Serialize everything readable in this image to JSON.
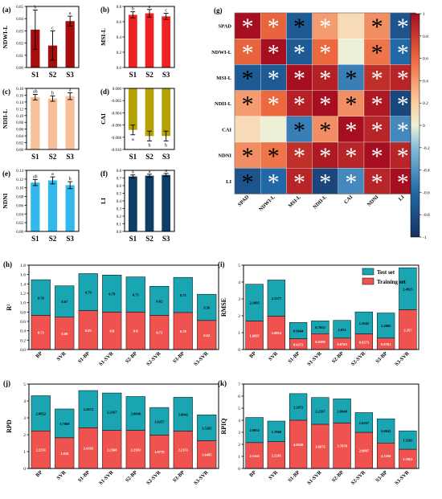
{
  "chart_data": [
    {
      "id": "a",
      "type": "bar",
      "panel_label": "(a)",
      "categories": [
        "S1",
        "S2",
        "S3"
      ],
      "values": [
        0.031,
        0.018,
        0.038
      ],
      "errors": [
        0.016,
        0.012,
        0.004
      ],
      "letters": [
        "b",
        "c",
        "a"
      ],
      "ylabel": "NDWI-L",
      "ylim": [
        0,
        0.05
      ],
      "yticks": [
        0,
        0.01,
        0.02,
        0.03,
        0.04,
        0.05
      ],
      "yticklabels": [
        "0.00",
        "0.01",
        "0.02",
        "0.03",
        "0.04",
        "0.05"
      ],
      "color": "#a80d0d"
    },
    {
      "id": "b",
      "type": "bar",
      "panel_label": "(b)",
      "categories": [
        "S1",
        "S2",
        "S3"
      ],
      "values": [
        0.69,
        0.71,
        0.67
      ],
      "errors": [
        0.04,
        0.05,
        0.04
      ],
      "letters": [
        "b",
        "a",
        "c"
      ],
      "ylabel": "MSI-L",
      "ylim": [
        0,
        0.8
      ],
      "yticks": [
        0,
        0.2,
        0.4,
        0.6,
        0.8
      ],
      "yticklabels": [
        "0.0",
        "0.2",
        "0.4",
        "0.6",
        "0.8"
      ],
      "color": "#ee2222"
    },
    {
      "id": "c",
      "type": "bar",
      "panel_label": "(c)",
      "categories": [
        "S1",
        "S2",
        "S3"
      ],
      "values": [
        0.154,
        0.15,
        0.157
      ],
      "errors": [
        0.008,
        0.008,
        0.01
      ],
      "letters": [
        "ab",
        "b",
        "a"
      ],
      "ylabel": "NDII-L",
      "ylim": [
        0,
        0.18
      ],
      "yticks": [
        0,
        0.02,
        0.04,
        0.06,
        0.08,
        0.1,
        0.12,
        0.14,
        0.16,
        0.18
      ],
      "yticklabels": [
        "0.00",
        "0.02",
        "0.04",
        "0.06",
        "0.08",
        "0.10",
        "0.12",
        "0.14",
        "0.16",
        "0.18"
      ],
      "color": "#f7c09a"
    },
    {
      "id": "d",
      "type": "bar",
      "panel_label": "(d)",
      "categories": [
        "S1",
        "S2",
        "S3"
      ],
      "values": [
        -0.0068,
        -0.0078,
        -0.0078
      ],
      "errors": [
        0.0008,
        0.0008,
        0.0008
      ],
      "letters": [
        "a",
        "b",
        "b"
      ],
      "ylabel": "CAI",
      "ylim": [
        -0.01,
        0
      ],
      "yticks": [
        -0.01,
        -0.008,
        -0.006,
        -0.004,
        -0.002,
        0
      ],
      "yticklabels": [
        "-0.010",
        "-0.008",
        "-0.006",
        "-0.004",
        "-0.002",
        "0.000"
      ],
      "color": "#b5a200"
    },
    {
      "id": "e",
      "type": "bar",
      "panel_label": "(e)",
      "categories": [
        "S1",
        "S2",
        "S3"
      ],
      "values": [
        0.112,
        0.117,
        0.106
      ],
      "errors": [
        0.007,
        0.008,
        0.008
      ],
      "letters": [
        "ab",
        "a",
        "b"
      ],
      "ylabel": "NDNI",
      "ylim": [
        0,
        0.14
      ],
      "yticks": [
        0,
        0.02,
        0.04,
        0.06,
        0.08,
        0.1,
        0.12,
        0.14
      ],
      "yticklabels": [
        "0.00",
        "0.02",
        "0.04",
        "0.06",
        "0.08",
        "0.10",
        "0.12",
        "0.14"
      ],
      "color": "#33b8ec"
    },
    {
      "id": "f",
      "type": "bar",
      "panel_label": "(f)",
      "categories": [
        "S1",
        "S2",
        "S3"
      ],
      "values": [
        0.72,
        0.73,
        0.74
      ],
      "errors": [
        0.02,
        0.02,
        0.02
      ],
      "letters": [
        "a",
        "a",
        "a"
      ],
      "ylabel": "LI",
      "ylim": [
        0,
        0.8
      ],
      "yticks": [
        0,
        0.1,
        0.2,
        0.3,
        0.4,
        0.5,
        0.6,
        0.7,
        0.8
      ],
      "yticklabels": [
        "0.0",
        "0.1",
        "0.2",
        "0.3",
        "0.4",
        "0.5",
        "0.6",
        "0.7",
        "0.8"
      ],
      "color": "#0f3d66"
    },
    {
      "id": "g",
      "type": "heatmap",
      "panel_label": "(g)",
      "labels": [
        "SPAD",
        "NDWI-L",
        "MSI-L",
        "NDII-L",
        "CAI",
        "NDNI",
        "LI"
      ],
      "matrix": [
        [
          1.0,
          0.62,
          -0.7,
          0.4,
          0.12,
          0.45,
          -0.75
        ],
        [
          0.62,
          1.0,
          -0.7,
          0.6,
          0.0,
          0.55,
          -0.6
        ],
        [
          -0.7,
          -0.7,
          1.0,
          0.92,
          -0.5,
          0.85,
          0.9
        ],
        [
          0.4,
          0.6,
          0.92,
          1.0,
          0.45,
          0.95,
          -0.85
        ],
        [
          0.12,
          0.0,
          -0.5,
          0.45,
          1.0,
          0.9,
          -0.45
        ],
        [
          0.45,
          0.55,
          0.85,
          0.95,
          0.9,
          1.0,
          0.9
        ],
        [
          -0.75,
          -0.6,
          0.9,
          -0.85,
          -0.45,
          0.9,
          1.0
        ]
      ],
      "marks": [
        [
          "*w",
          "*w",
          "*k",
          "*w",
          "",
          "*k",
          "*w"
        ],
        [
          "*w",
          "*w",
          "*w",
          "*w",
          "",
          "*k",
          "*w"
        ],
        [
          "*k",
          "*w",
          "*w",
          "*w",
          "*k",
          "*w",
          "*w"
        ],
        [
          "*k",
          "*w",
          "*w",
          "*w",
          "*k",
          "*w",
          "*w"
        ],
        [
          "",
          "",
          "*k",
          "*k",
          "*w",
          "*w",
          "*w"
        ],
        [
          "*k",
          "*k",
          "*w",
          "*w",
          "*w",
          "*w",
          "*w"
        ],
        [
          "*k",
          "*w",
          "*w",
          "*w",
          "*w",
          "*w",
          "*w"
        ]
      ],
      "colorbar_ticks": [
        1,
        0.8,
        0.6,
        0.4,
        0.2,
        0,
        -0.2,
        -0.4,
        -0.6,
        -0.8,
        -1
      ],
      "colorbar_ticklabels": [
        "1",
        "0.8",
        "0.6",
        "0.4",
        "0.2",
        "0",
        "-0.2",
        "-0.4",
        "-0.6",
        "-0.8",
        "-1"
      ]
    },
    {
      "id": "h",
      "type": "bar",
      "stacked": true,
      "panel_label": "(h)",
      "ylabel": "R²",
      "ylim": [
        0,
        1.8
      ],
      "yticks": [
        0,
        0.2,
        0.4,
        0.6,
        0.8,
        1.0,
        1.2,
        1.4,
        1.6,
        1.8
      ],
      "yticklabels": [
        "0.0",
        "0.2",
        "0.4",
        "0.6",
        "0.8",
        "1.0",
        "1.2",
        "1.4",
        "1.6",
        "1.8"
      ],
      "categories": [
        "BP",
        "SVR",
        "S1-BP",
        "S1-SVR",
        "S2-BP",
        "S2-SVR",
        "S3-BP",
        "S3-SVR"
      ],
      "series": [
        {
          "name": "Training set",
          "values": [
            0.73,
            0.69,
            0.83,
            0.8,
            0.8,
            0.73,
            0.79,
            0.62
          ]
        },
        {
          "name": "Test set",
          "values": [
            0.76,
            0.67,
            0.79,
            0.79,
            0.75,
            0.62,
            0.75,
            0.56
          ]
        }
      ],
      "train_labels": [
        "0.73",
        "0.69",
        "0.83",
        "0.8",
        "0.8",
        "0.73",
        "0.79",
        "0.62"
      ],
      "test_labels": [
        "0.76",
        "0.67",
        "0.79",
        "0.79",
        "0.75",
        "0.62",
        "0.75",
        "0.56"
      ]
    },
    {
      "id": "i",
      "type": "bar",
      "stacked": true,
      "panel_label": "(i)",
      "ylabel": "RMSE",
      "ylim": [
        0,
        5
      ],
      "yticks": [
        0,
        1,
        2,
        3,
        4,
        5
      ],
      "yticklabels": [
        "0",
        "1",
        "2",
        "3",
        "4",
        "5"
      ],
      "categories": [
        "BP",
        "SVR",
        "S1-BP",
        "S1-SVR",
        "S2-BP",
        "S2-SVR",
        "S3-BP",
        "S3-SVR"
      ],
      "series": [
        {
          "name": "Training set",
          "values": [
            1.6897,
            1.9814,
            0.6372,
            0.9399,
            0.6763,
            0.9273,
            0.6761,
            2.357
          ]
        },
        {
          "name": "Test set",
          "values": [
            2.1805,
            2.1377,
            0.9644,
            0.7652,
            1.051,
            1.3042,
            1.4885,
            2.4925
          ]
        }
      ],
      "train_labels": [
        "1.6897",
        "1.9814",
        "0.6372",
        "0.9399",
        "0.6763",
        "0.9273",
        "0.6761",
        "2.357"
      ],
      "test_labels": [
        "2.1805",
        "2.1377",
        "0.9644",
        "0.7652",
        "1.051",
        "1.3042",
        "1.4885",
        "2.4925"
      ],
      "legend": [
        "Test set",
        "Training set"
      ]
    },
    {
      "id": "j",
      "type": "bar",
      "stacked": true,
      "panel_label": "(j)",
      "ylabel": "RPD",
      "ylim": [
        0,
        5
      ],
      "yticks": [
        0,
        1,
        2,
        3,
        4,
        5
      ],
      "yticklabels": [
        "0",
        "1",
        "2",
        "3",
        "4",
        "5"
      ],
      "categories": [
        "BP",
        "SVR",
        "S1-BP",
        "S1-SVR",
        "S2-BP",
        "S2-SVR",
        "S3-BP",
        "S3-SVR"
      ],
      "series": [
        {
          "name": "Training set",
          "values": [
            2.2251,
            1.818,
            2.4102,
            2.2568,
            2.2583,
            1.9779,
            2.2155,
            1.6485
          ]
        },
        {
          "name": "Test set",
          "values": [
            2.0852,
            1.7068,
            2.2072,
            2.2167,
            2.0048,
            1.6357,
            2.0042,
            1.5265
          ]
        }
      ],
      "train_labels": [
        "2.2251",
        "1.818",
        "2.4102",
        "2.2568",
        "2.2583",
        "1.9779",
        "2.2155",
        "1.6485"
      ],
      "test_labels": [
        "2.0852",
        "1.7068",
        "2.2072",
        "2.2167",
        "2.0048",
        "1.6357",
        "2.0042",
        "1.5265"
      ]
    },
    {
      "id": "k",
      "type": "bar",
      "stacked": true,
      "panel_label": "(k)",
      "ylabel": "RPIQ",
      "ylim": [
        0,
        7
      ],
      "yticks": [
        0,
        1,
        2,
        3,
        4,
        5,
        6,
        7
      ],
      "yticklabels": [
        "0",
        "1",
        "2",
        "3",
        "4",
        "5",
        "6",
        "7"
      ],
      "categories": [
        "BP",
        "SVR",
        "S1-BP",
        "S1-SVR",
        "S2-BP",
        "S2-SVR",
        "S3-BP",
        "S3-SVR"
      ],
      "series": [
        {
          "name": "Training set",
          "values": [
            2.1445,
            2.2261,
            4.0028,
            3.6673,
            3.7678,
            2.9987,
            2.1184,
            1.5961
          ]
        },
        {
          "name": "Test set",
          "values": [
            2.0852,
            1.7068,
            2.2072,
            2.2167,
            2.0048,
            1.6357,
            2.0042,
            1.5265
          ]
        }
      ],
      "train_labels": [
        "2.1445",
        "2.2261",
        "4.0028",
        "3.6673",
        "3.7678",
        "2.9987",
        "2.1184",
        "1.5961"
      ],
      "test_labels": [
        "2.0852",
        "1.7068",
        "2.2072",
        "2.2167",
        "2.0048",
        "1.6357",
        "2.0042",
        "1.5265"
      ]
    }
  ],
  "colors": {
    "train": "#f0534f",
    "test": "#1aa5b3",
    "grid_frame": "#000000"
  }
}
